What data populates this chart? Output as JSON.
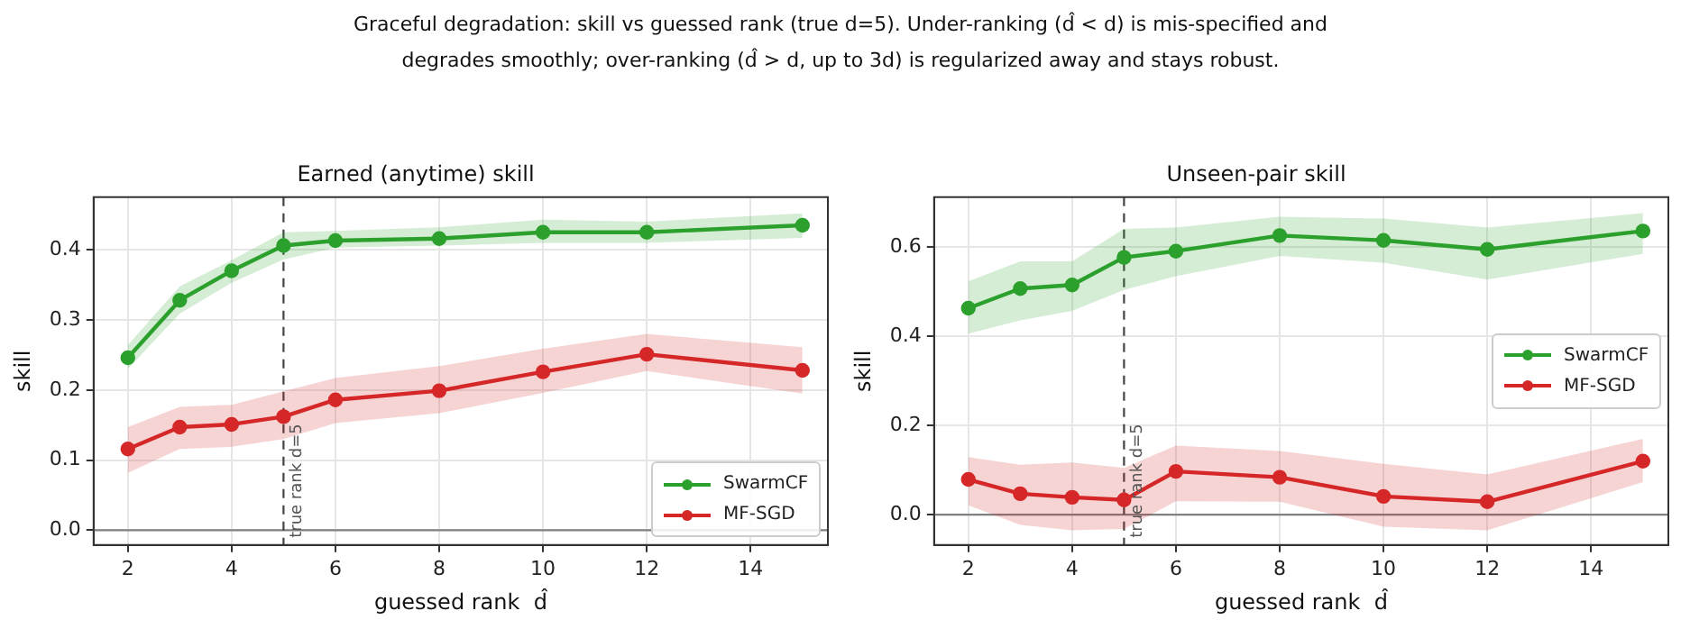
{
  "chart_data": [
    {
      "type": "other",
      "title": "Graceful degradation: skill vs guessed rank (true d=5). Under-ranking (d̂ < d) is mis-specified and degrades smoothly; over-ranking (d̂ > d, up to 3d) is regularized away and stays robust."
    },
    {
      "type": "line",
      "title": "Earned (anytime) skill",
      "xlabel": "guessed rank  d̂",
      "ylabel": "skill",
      "x": [
        2,
        3,
        4,
        5,
        6,
        8,
        10,
        12,
        15
      ],
      "series": [
        {
          "name": "SwarmCF",
          "color": "#2ca02c",
          "values": [
            0.246,
            0.328,
            0.37,
            0.406,
            0.413,
            0.416,
            0.425,
            0.425,
            0.435
          ],
          "lower": [
            0.23,
            0.309,
            0.353,
            0.386,
            0.403,
            0.406,
            0.41,
            0.41,
            0.417
          ],
          "upper": [
            0.264,
            0.348,
            0.385,
            0.425,
            0.427,
            0.432,
            0.443,
            0.44,
            0.452
          ]
        },
        {
          "name": "MF-SGD",
          "color": "#d62728",
          "values": [
            0.116,
            0.147,
            0.151,
            0.162,
            0.186,
            0.199,
            0.226,
            0.251,
            0.228
          ],
          "lower": [
            0.082,
            0.116,
            0.119,
            0.13,
            0.153,
            0.167,
            0.196,
            0.227,
            0.195
          ],
          "upper": [
            0.147,
            0.176,
            0.179,
            0.198,
            0.217,
            0.234,
            0.259,
            0.28,
            0.261
          ]
        }
      ],
      "xlim": [
        1.34,
        15.49
      ],
      "xticks": [
        2,
        4,
        6,
        8,
        10,
        12,
        14
      ],
      "ylim": [
        -0.021,
        0.475
      ],
      "yticks": [
        {
          "value": 0,
          "label": "0.0"
        },
        {
          "value": 0.1,
          "label": "0.1"
        },
        {
          "value": 0.2,
          "label": "0.2"
        },
        {
          "value": 0.3,
          "label": "0.3"
        },
        {
          "value": 0.4,
          "label": "0.4"
        }
      ],
      "ref_lines": [
        {
          "axis": "y",
          "value": 0,
          "color": "#808080",
          "line_style": "solid"
        },
        {
          "axis": "x",
          "value": 5,
          "label": "true rank d=5",
          "color": "#444444",
          "line_style": "dashed"
        }
      ],
      "grid": true,
      "legend": "bottom right",
      "marker": "circle",
      "line_style": "solid"
    },
    {
      "type": "line",
      "title": "Unseen-pair skill",
      "xlabel": "guessed rank  d̂",
      "ylabel": "skill",
      "x": [
        2,
        3,
        4,
        5,
        6,
        8,
        10,
        12,
        15
      ],
      "series": [
        {
          "name": "SwarmCF",
          "color": "#2ca02c",
          "values": [
            0.463,
            0.507,
            0.515,
            0.577,
            0.591,
            0.626,
            0.615,
            0.595,
            0.636
          ],
          "lower": [
            0.406,
            0.436,
            0.457,
            0.504,
            0.535,
            0.58,
            0.565,
            0.527,
            0.585
          ],
          "upper": [
            0.523,
            0.568,
            0.568,
            0.641,
            0.644,
            0.668,
            0.664,
            0.644,
            0.676
          ]
        },
        {
          "name": "MF-SGD",
          "color": "#d62728",
          "values": [
            0.079,
            0.047,
            0.039,
            0.033,
            0.097,
            0.084,
            0.041,
            0.029,
            0.12
          ],
          "lower": [
            0.021,
            -0.023,
            -0.035,
            -0.032,
            0.03,
            0.029,
            -0.027,
            -0.035,
            0.073
          ],
          "upper": [
            0.129,
            0.112,
            0.117,
            0.105,
            0.155,
            0.143,
            0.114,
            0.09,
            0.17
          ]
        }
      ],
      "xlim": [
        1.34,
        15.49
      ],
      "xticks": [
        2,
        4,
        6,
        8,
        10,
        12,
        14
      ],
      "ylim": [
        -0.068,
        0.712
      ],
      "yticks": [
        {
          "value": 0,
          "label": "0.0"
        },
        {
          "value": 0.2,
          "label": "0.2"
        },
        {
          "value": 0.4,
          "label": "0.4"
        },
        {
          "value": 0.6,
          "label": "0.6"
        }
      ],
      "ref_lines": [
        {
          "axis": "y",
          "value": 0,
          "color": "#808080",
          "line_style": "solid"
        },
        {
          "axis": "x",
          "value": 5,
          "label": "true rank d=5",
          "color": "#444444",
          "line_style": "dashed"
        }
      ],
      "grid": true,
      "legend": "right",
      "marker": "circle",
      "line_style": "solid"
    }
  ]
}
